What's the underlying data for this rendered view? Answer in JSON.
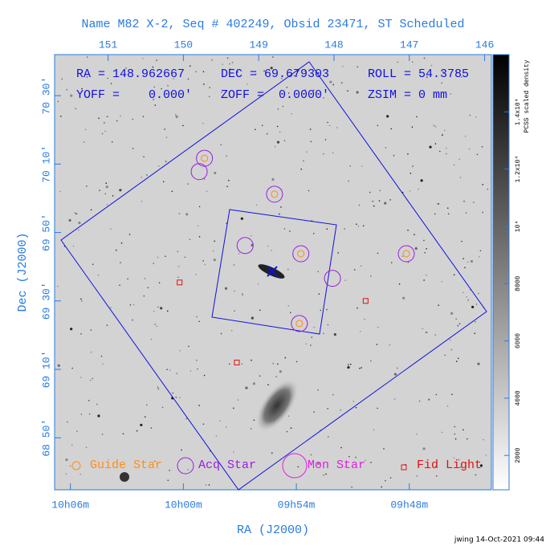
{
  "chart_data": {
    "type": "scatter",
    "title": "Name M82 X-2, Seq # 402249, Obsid 23471, ST Scheduled",
    "info": [
      "RA = 148.962667",
      "DEC = 69.679303",
      "ROLL = 54.3785",
      "YOFF =    0.000'",
      "ZOFF =  0.0000'",
      "ZSIM = 0 mm"
    ],
    "x_label": "RA (J2000)",
    "y_label": "Dec (J2000)",
    "xlim": [
      151.71,
      145.91
    ],
    "ylim": [
      68.58,
      70.7
    ],
    "xticks": [
      151,
      150,
      149,
      148,
      147,
      146
    ],
    "xticks_bottom": [
      {
        "value": 151.5,
        "label": "10h06m"
      },
      {
        "value": 150,
        "label": "10h00m"
      },
      {
        "value": 148.5,
        "label": "09h54m"
      },
      {
        "value": 147,
        "label": "09h48m"
      }
    ],
    "yticks": [
      {
        "value": 70.5,
        "label": "70 30'"
      },
      {
        "value": 70.16667,
        "label": "70 10'"
      },
      {
        "value": 69.83333,
        "label": "69 50'"
      },
      {
        "value": 69.5,
        "label": "69 30'"
      },
      {
        "value": 69.16667,
        "label": "69 10'"
      },
      {
        "value": 68.83333,
        "label": "68 50'"
      }
    ],
    "series": [
      {
        "name": "Guide Star",
        "color": "#ff8c1a",
        "x": [
          149.72,
          148.79,
          148.44,
          147.04,
          148.46
        ],
        "values": [
          70.195,
          70.02,
          69.73,
          69.73,
          69.39
        ]
      },
      {
        "name": "Acq Star",
        "color": "#9a1ee0",
        "x": [
          149.72,
          148.79,
          148.44,
          147.04,
          148.46,
          149.79,
          149.18,
          148.02
        ],
        "values": [
          70.195,
          70.02,
          69.73,
          69.73,
          69.39,
          70.13,
          69.77,
          69.61
        ]
      },
      {
        "name": "Mon Star",
        "color": "#e020e0",
        "x": [],
        "values": []
      },
      {
        "name": "Fid Light",
        "color": "#e01010",
        "x": [
          150.05,
          147.58,
          149.29
        ],
        "values": [
          69.59,
          69.5,
          69.2
        ]
      }
    ],
    "colorbar": {
      "label": "PCSS scaled density",
      "lim": [
        800,
        16000
      ],
      "ticks": [
        2000,
        4000,
        6000,
        8000,
        {
          "value": 10000,
          "label": "10⁴"
        },
        {
          "value": 12000,
          "label": "1.2x10⁴"
        },
        {
          "value": 14000,
          "label": "1.4x10⁴"
        }
      ]
    },
    "footer": "jwing 14-Oct-2021 09:44"
  }
}
